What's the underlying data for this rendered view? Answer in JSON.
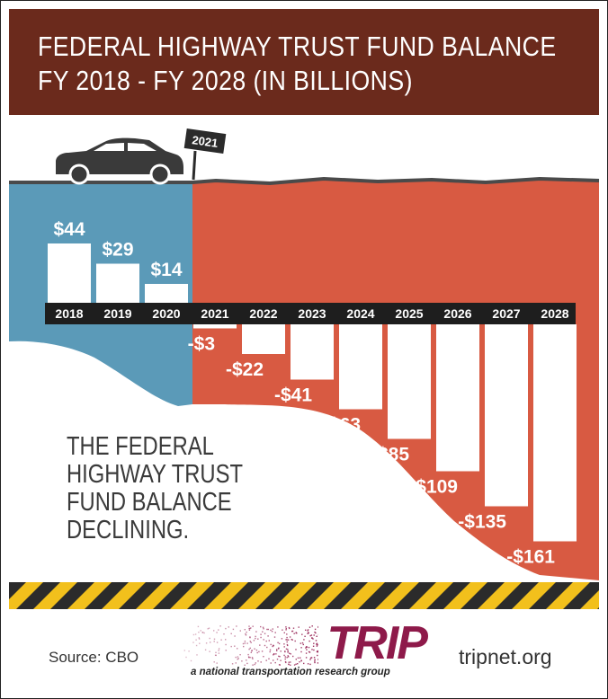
{
  "title": {
    "line1": "FEDERAL HIGHWAY TRUST FUND BALANCE",
    "line2": "FY 2018 - FY 2028 (IN BILLIONS)"
  },
  "sign_label": "2021",
  "headline": [
    "THE FEDERAL",
    "HIGHWAY TRUST",
    "FUND BALANCE",
    "DECLINING."
  ],
  "footer": {
    "source": "Source: CBO",
    "logo_name": "TRIP",
    "logo_tagline": "a national transportation research group",
    "website": "tripnet.org"
  },
  "colors": {
    "title_bg": "#6b2a1c",
    "positive_area": "#5b9ab8",
    "negative_area": "#d85a42",
    "year_bar": "#1e1e1e",
    "bars": "#ffffff",
    "stripe_yellow": "#f2c01c",
    "stripe_dark": "#2b2b2b"
  },
  "chart_data": {
    "type": "bar",
    "title": "FEDERAL HIGHWAY TRUST FUND BALANCE FY 2018 - FY 2028 (IN BILLIONS)",
    "categories": [
      "2018",
      "2019",
      "2020",
      "2021",
      "2022",
      "2023",
      "2024",
      "2025",
      "2026",
      "2027",
      "2028"
    ],
    "values": [
      44,
      29,
      14,
      -3,
      -22,
      -41,
      -63,
      -85,
      -109,
      -135,
      -161
    ],
    "value_labels": [
      "$44",
      "$29",
      "$14",
      "-$3",
      "-$22",
      "-$41",
      "-$63",
      "-$85",
      "-$109",
      "-$135",
      "-$161"
    ],
    "unit": "billions of dollars",
    "grid": false,
    "legend": "none"
  }
}
